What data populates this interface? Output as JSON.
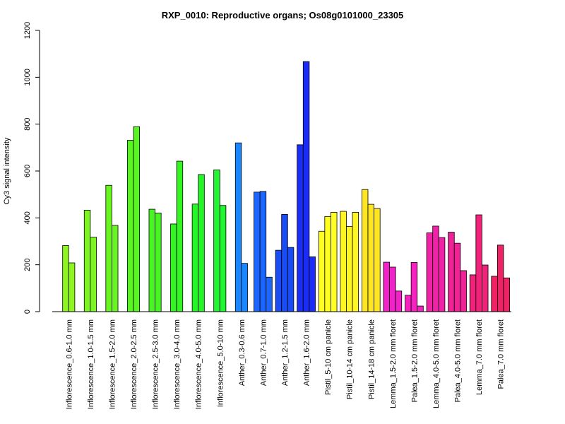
{
  "chart_data": {
    "type": "bar",
    "title": "RXP_0010: Reproductive organs; Os08g0101000_23305",
    "ylabel": "Cy3 signal intensity",
    "xlabel": "",
    "ylim": [
      0,
      1200
    ],
    "yticks": [
      "0",
      "200",
      "400",
      "600",
      "800",
      "1000",
      "1200"
    ],
    "grid": false,
    "legend": "none",
    "groups": [
      {
        "label": "Inflorescence_0.6-1.0 mm",
        "color": "#8FF522",
        "values": [
          282,
          208
        ]
      },
      {
        "label": "Inflorescence_1.0-1.5 mm",
        "color": "#7CF522",
        "values": [
          433,
          318
        ]
      },
      {
        "label": "Inflorescence_1.5-2.0 mm",
        "color": "#6AF522",
        "values": [
          539,
          368
        ]
      },
      {
        "label": "Inflorescence_2.0-2.5 mm",
        "color": "#58F522",
        "values": [
          731,
          789
        ]
      },
      {
        "label": "Inflorescence_2.5-3.0 mm",
        "color": "#46F522",
        "values": [
          437,
          421
        ]
      },
      {
        "label": "Inflorescence_3.0-4.0 mm",
        "color": "#34F522",
        "values": [
          374,
          642
        ]
      },
      {
        "label": "Inflorescence_4.0-5.0 mm",
        "color": "#26F526",
        "values": [
          459,
          585
        ]
      },
      {
        "label": "Inflorescence_5.0-10 mm",
        "color": "#22F532",
        "values": [
          605,
          453
        ]
      },
      {
        "label": "Anther_0.3-0.6 mm",
        "color": "#1A86FF",
        "values": [
          720,
          206
        ]
      },
      {
        "label": "Anther_0.7-1.0 mm",
        "color": "#1A66FF",
        "values": [
          510,
          513,
          147
        ]
      },
      {
        "label": "Anther_1.2-1.5 mm",
        "color": "#1A4CF5",
        "values": [
          262,
          415,
          274
        ]
      },
      {
        "label": "Anther_1.6-2.0 mm",
        "color": "#1A2CF5",
        "values": [
          712,
          1067,
          234
        ]
      },
      {
        "label": "Pistil_5-10 cm panicle",
        "color": "#FFFF22",
        "values": [
          343,
          406,
          424
        ]
      },
      {
        "label": "Pistil_10-14 cm panicle",
        "color": "#FFF522",
        "values": [
          428,
          363,
          424
        ]
      },
      {
        "label": "Pistil_14-18 cm panicle",
        "color": "#FFE522",
        "values": [
          521,
          458,
          440
        ]
      },
      {
        "label": "Lemma_1.5-2.0 mm floret",
        "color": "#F022C8",
        "values": [
          211,
          190,
          88
        ]
      },
      {
        "label": "Palea_1.5-2.0 mm floret",
        "color": "#F522C0",
        "values": [
          70,
          210,
          24
        ]
      },
      {
        "label": "Lemma_4.0-5.0 mm floret",
        "color": "#F022A8",
        "values": [
          336,
          365,
          316
        ]
      },
      {
        "label": "Palea_4.0-5.0 mm floret",
        "color": "#F02296",
        "values": [
          339,
          292,
          175
        ]
      },
      {
        "label": "Lemma_7.0 mm floret",
        "color": "#F0227A",
        "values": [
          157,
          413,
          199
        ]
      },
      {
        "label": "Palea_7.0 mm floret",
        "color": "#F02266",
        "values": [
          151,
          284,
          144
        ]
      }
    ]
  }
}
